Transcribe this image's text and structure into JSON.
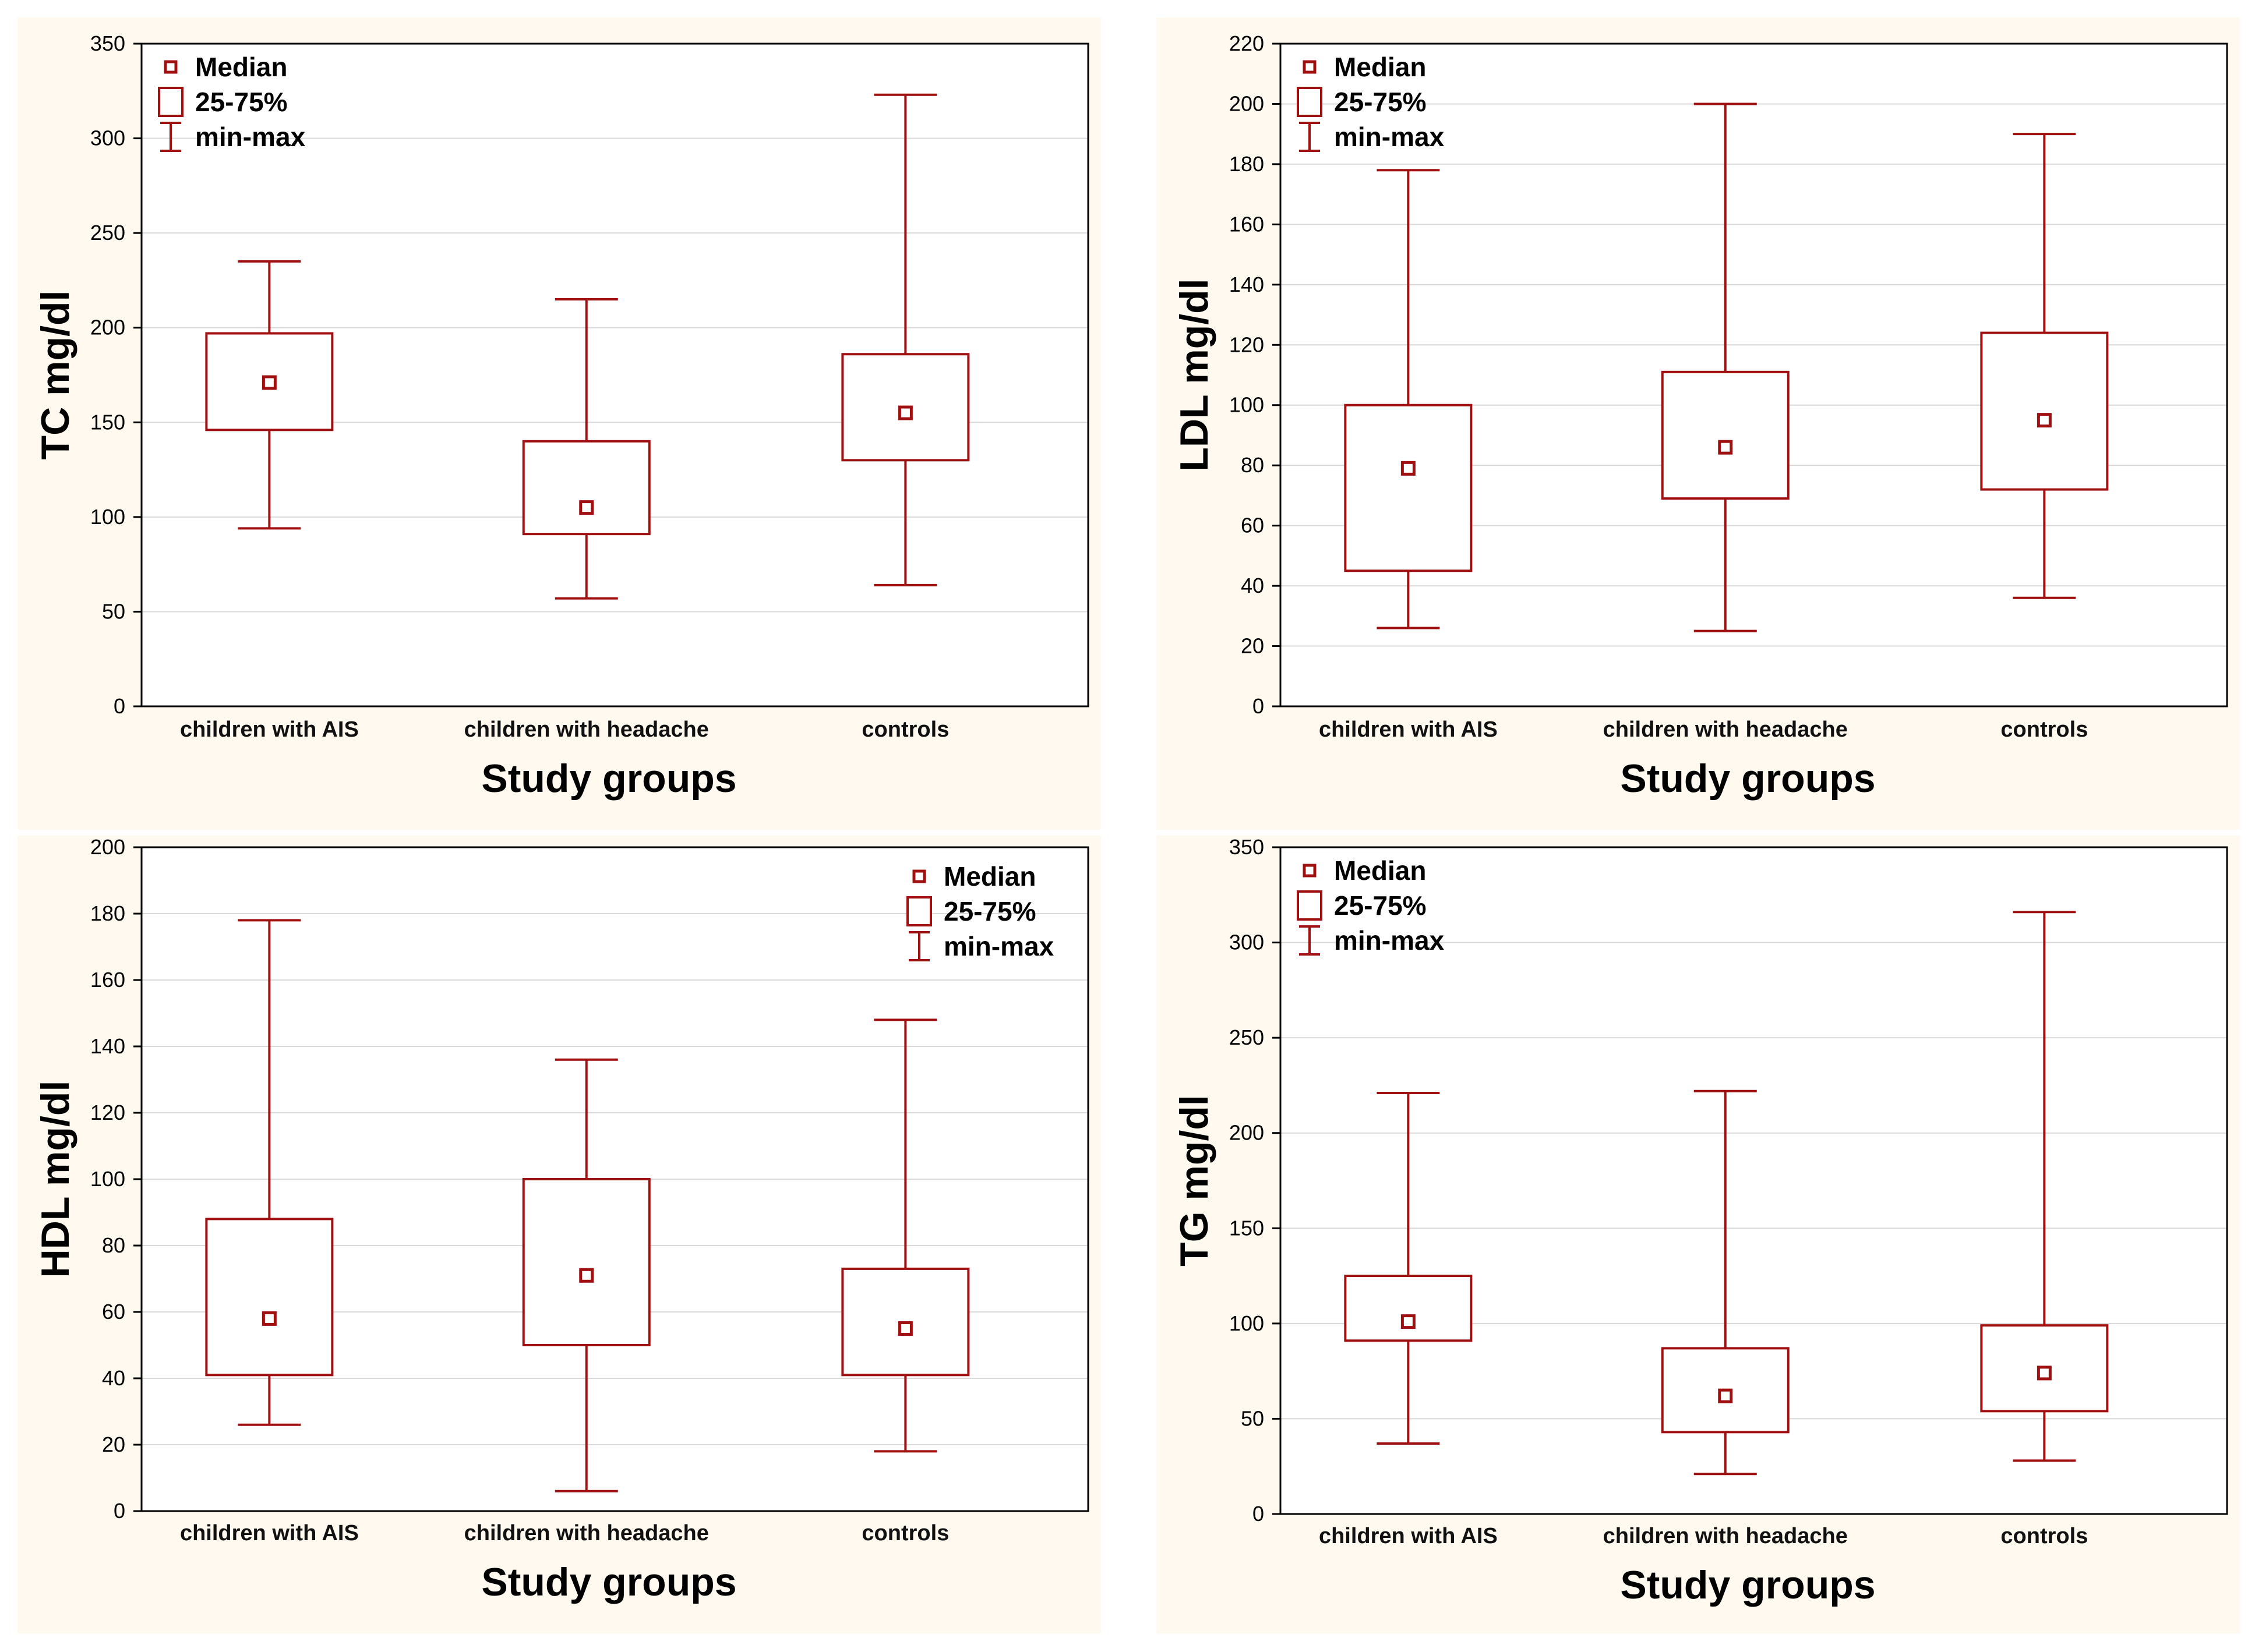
{
  "colors": {
    "panel_background": "#fff9ef",
    "plot_background": "#ffffff",
    "box_color": "#a01010",
    "grid_color": "#d9d9d9",
    "axis_color": "#000000"
  },
  "legend": {
    "median": "Median",
    "quartiles": "25-75%",
    "range": "min-max"
  },
  "chart_data": [
    {
      "type": "boxplot",
      "ylabel": "TC mg/dl",
      "xlabel": "Study groups",
      "ylim": [
        0,
        350
      ],
      "yticks": [
        0,
        50,
        100,
        150,
        200,
        250,
        300,
        350
      ],
      "legend_position": "top-left",
      "categories": [
        "children with AIS",
        "children with headache",
        "controls"
      ],
      "min": [
        94,
        57,
        64
      ],
      "q1": [
        146,
        91,
        130
      ],
      "median": [
        171,
        105,
        155
      ],
      "q3": [
        197,
        140,
        186
      ],
      "max": [
        235,
        215,
        323
      ]
    },
    {
      "type": "boxplot",
      "ylabel": "LDL mg/dl",
      "xlabel": "Study groups",
      "ylim": [
        0,
        220
      ],
      "yticks": [
        0,
        20,
        40,
        60,
        80,
        100,
        120,
        140,
        160,
        180,
        200,
        220
      ],
      "legend_position": "top-left",
      "categories": [
        "children with AIS",
        "children with headache",
        "controls"
      ],
      "min": [
        26,
        25,
        36
      ],
      "q1": [
        45,
        69,
        72
      ],
      "median": [
        79,
        86,
        95
      ],
      "q3": [
        100,
        111,
        124
      ],
      "max": [
        178,
        200,
        190
      ]
    },
    {
      "type": "boxplot",
      "ylabel": "HDL mg/dl",
      "xlabel": "Study groups",
      "ylim": [
        0,
        200
      ],
      "yticks": [
        0,
        20,
        40,
        60,
        80,
        100,
        120,
        140,
        160,
        180,
        200
      ],
      "legend_position": "top-right",
      "categories": [
        "children with AIS",
        "children with headache",
        "controls"
      ],
      "min": [
        26,
        6,
        18
      ],
      "q1": [
        41,
        50,
        41
      ],
      "median": [
        58,
        71,
        55
      ],
      "q3": [
        88,
        100,
        73
      ],
      "max": [
        178,
        136,
        148
      ]
    },
    {
      "type": "boxplot",
      "ylabel": "TG mg/dl",
      "xlabel": "Study groups",
      "ylim": [
        0,
        350
      ],
      "yticks": [
        0,
        50,
        100,
        150,
        200,
        250,
        300,
        350
      ],
      "legend_position": "top-left",
      "categories": [
        "children with AIS",
        "children with headache",
        "controls"
      ],
      "min": [
        37,
        21,
        28
      ],
      "q1": [
        91,
        43,
        54
      ],
      "median": [
        101,
        62,
        74
      ],
      "q3": [
        125,
        87,
        99
      ],
      "max": [
        221,
        222,
        316
      ]
    }
  ]
}
